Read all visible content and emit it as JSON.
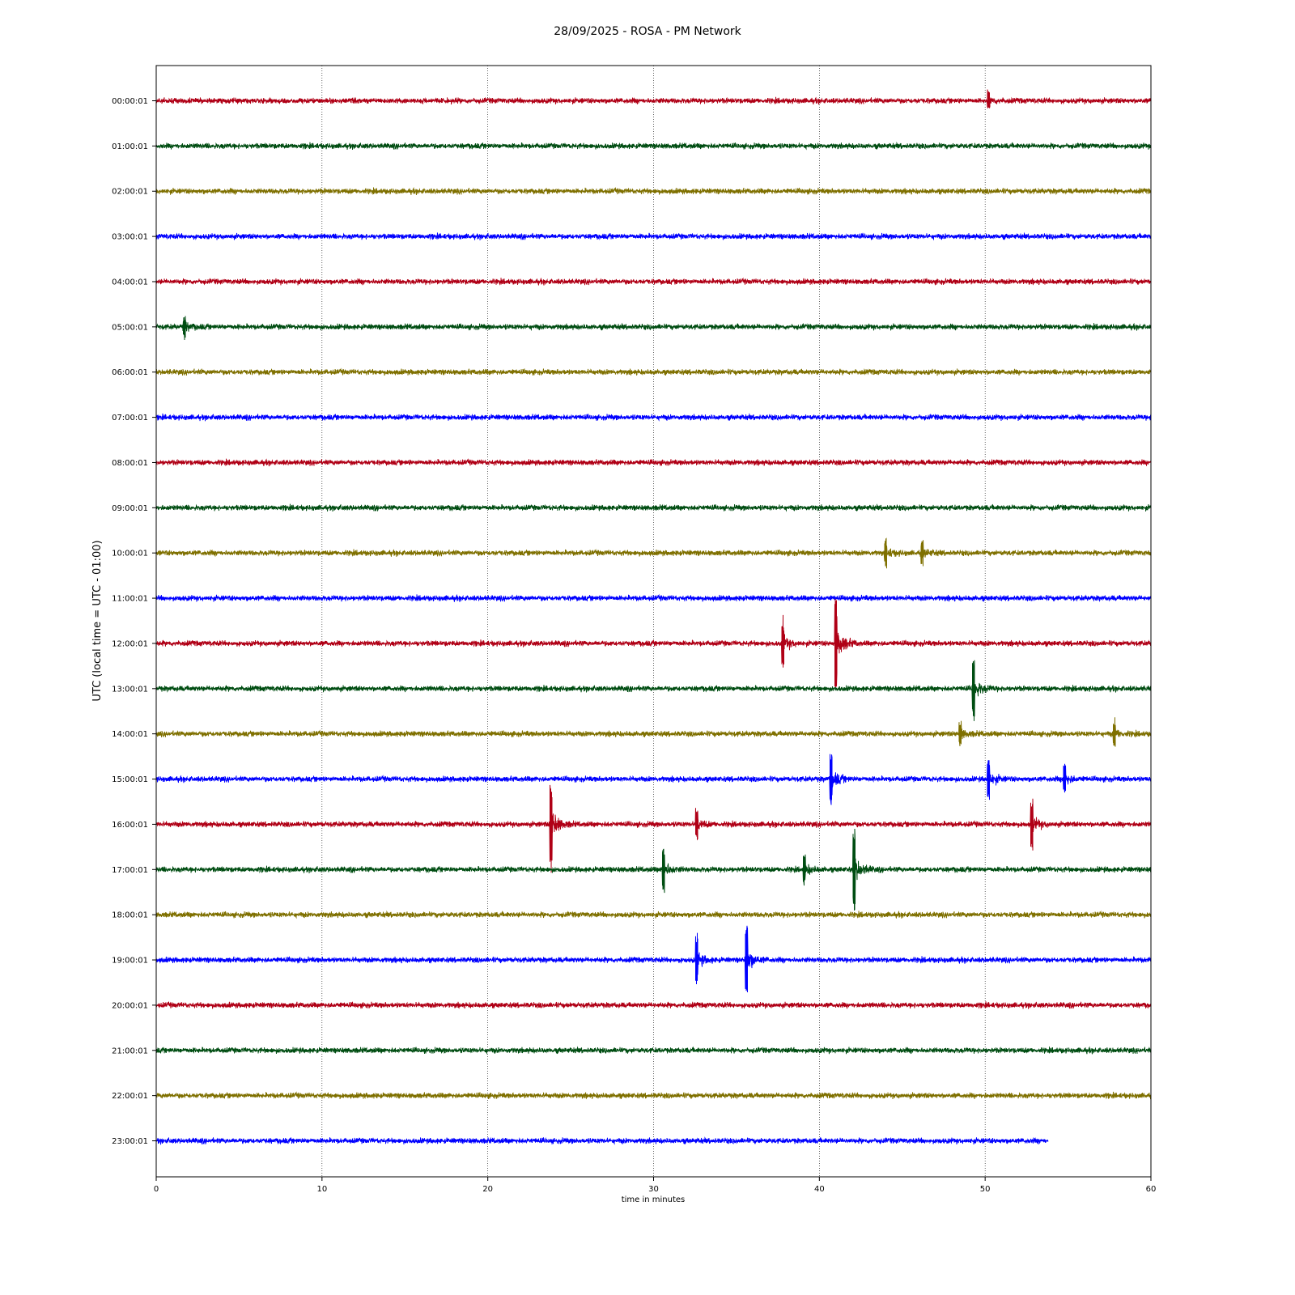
{
  "chart_data": {
    "type": "line",
    "title": "28/09/2025 - ROSA - PM Network",
    "xlabel": "time in minutes",
    "ylabel": "UTC (local time = UTC - 01:00)",
    "xlim": [
      0,
      60
    ],
    "xticks": [
      "0",
      "10",
      "20",
      "30",
      "40",
      "50",
      "60"
    ],
    "grid": "vertical dotted at x ticks",
    "color_cycle": [
      "#b00016",
      "#004d12",
      "#7f7000",
      "#0000ff"
    ],
    "series": [
      {
        "label": "00:00:01",
        "end_minute": 60,
        "events": [
          {
            "minute": 50.2,
            "amplitude": 0.6
          }
        ]
      },
      {
        "label": "01:00:01",
        "end_minute": 60,
        "events": []
      },
      {
        "label": "02:00:01",
        "end_minute": 60,
        "events": []
      },
      {
        "label": "03:00:01",
        "end_minute": 60,
        "events": []
      },
      {
        "label": "04:00:01",
        "end_minute": 60,
        "events": []
      },
      {
        "label": "05:00:01",
        "end_minute": 60,
        "events": [
          {
            "minute": 1.7,
            "amplitude": 0.7
          }
        ]
      },
      {
        "label": "06:00:01",
        "end_minute": 60,
        "events": []
      },
      {
        "label": "07:00:01",
        "end_minute": 60,
        "events": []
      },
      {
        "label": "08:00:01",
        "end_minute": 60,
        "events": []
      },
      {
        "label": "09:00:01",
        "end_minute": 60,
        "events": []
      },
      {
        "label": "10:00:01",
        "end_minute": 60,
        "events": [
          {
            "minute": 44.0,
            "amplitude": 0.9
          },
          {
            "minute": 46.2,
            "amplitude": 0.8
          }
        ]
      },
      {
        "label": "11:00:01",
        "end_minute": 60,
        "events": []
      },
      {
        "label": "12:00:01",
        "end_minute": 60,
        "events": [
          {
            "minute": 37.8,
            "amplitude": 1.4
          },
          {
            "minute": 41.0,
            "amplitude": 3.5
          }
        ]
      },
      {
        "label": "13:00:01",
        "end_minute": 60,
        "events": [
          {
            "minute": 49.3,
            "amplitude": 2.0
          }
        ]
      },
      {
        "label": "14:00:01",
        "end_minute": 60,
        "events": [
          {
            "minute": 48.5,
            "amplitude": 0.8
          },
          {
            "minute": 57.8,
            "amplitude": 0.8
          }
        ]
      },
      {
        "label": "15:00:01",
        "end_minute": 60,
        "events": [
          {
            "minute": 40.7,
            "amplitude": 1.8
          },
          {
            "minute": 50.2,
            "amplitude": 1.4
          },
          {
            "minute": 54.8,
            "amplitude": 1.0
          }
        ]
      },
      {
        "label": "16:00:01",
        "end_minute": 60,
        "events": [
          {
            "minute": 23.8,
            "amplitude": 3.0
          },
          {
            "minute": 32.6,
            "amplitude": 1.0
          },
          {
            "minute": 52.8,
            "amplitude": 1.5
          }
        ]
      },
      {
        "label": "17:00:01",
        "end_minute": 60,
        "events": [
          {
            "minute": 30.6,
            "amplitude": 1.5
          },
          {
            "minute": 39.1,
            "amplitude": 1.0
          },
          {
            "minute": 42.1,
            "amplitude": 2.5
          }
        ]
      },
      {
        "label": "18:00:01",
        "end_minute": 60,
        "events": []
      },
      {
        "label": "19:00:01",
        "end_minute": 60,
        "events": [
          {
            "minute": 32.6,
            "amplitude": 1.5
          },
          {
            "minute": 35.6,
            "amplitude": 2.5
          }
        ]
      },
      {
        "label": "20:00:01",
        "end_minute": 60,
        "events": []
      },
      {
        "label": "21:00:01",
        "end_minute": 60,
        "events": []
      },
      {
        "label": "22:00:01",
        "end_minute": 60,
        "events": []
      },
      {
        "label": "23:00:01",
        "end_minute": 53.8,
        "events": []
      }
    ]
  }
}
